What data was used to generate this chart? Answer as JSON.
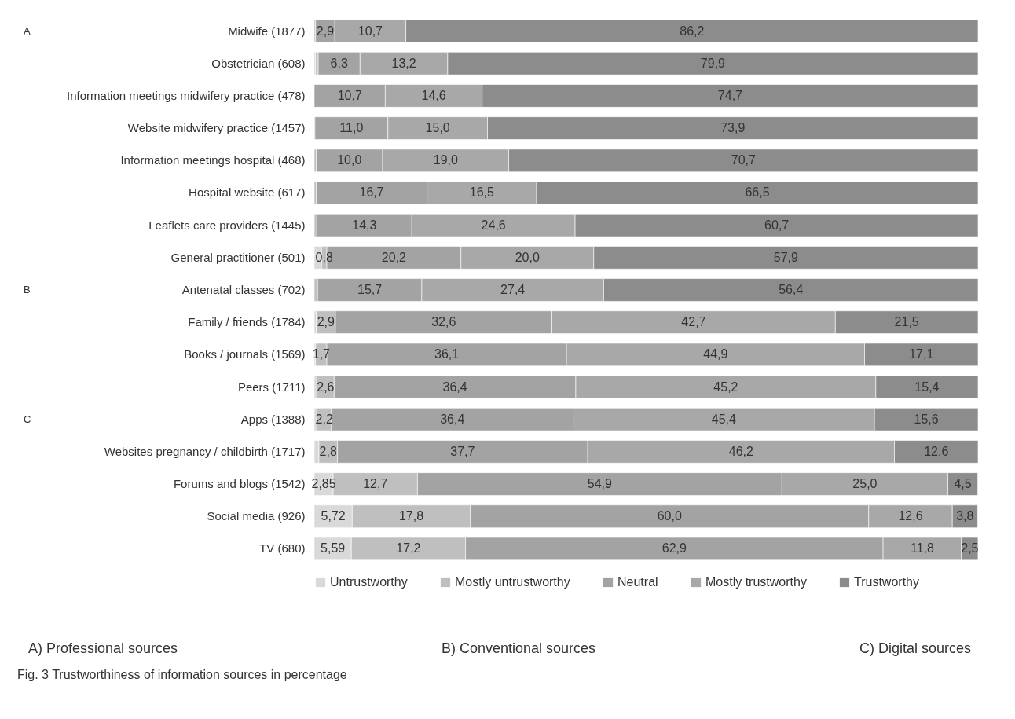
{
  "chart_data": {
    "type": "bar",
    "orientation": "horizontal",
    "stacked": true,
    "legend": "bottom",
    "categories": [
      "Midwife (1877)",
      "Obstetrician (608)",
      "Information meetings midwifery practice (478)",
      "Website midwifery practice (1457)",
      "Information meetings hospital (468)",
      "Hospital website  (617)",
      "Leaflets care providers (1445)",
      "General practitioner (501)",
      "Antenatal classes (702)",
      "Family / friends (1784)",
      "Books / journals (1569)",
      "Peers (1711)",
      "Apps (1388)",
      "Websites pregnancy / childbirth (1717)",
      "Forums and blogs (1542)",
      "Social media (926)",
      "TV (680)"
    ],
    "series": [
      {
        "name": "Untrustworthy",
        "color": "#d9d9d9",
        "values": [
          null,
          0.2,
          null,
          null,
          null,
          null,
          null,
          1.1,
          null,
          0.3,
          0.2,
          0.4,
          0.4,
          0.7,
          2.85,
          5.72,
          5.59
        ],
        "value_labels": [
          null,
          null,
          null,
          null,
          null,
          null,
          null,
          null,
          null,
          null,
          null,
          null,
          null,
          null,
          "2,85",
          "5,72",
          "5,59"
        ]
      },
      {
        "name": "Mostly untrustworthy",
        "color": "#bfbfbf",
        "values": [
          0.2,
          0.4,
          null,
          0.1,
          0.3,
          0.3,
          0.4,
          0.8,
          0.5,
          2.9,
          1.7,
          2.6,
          2.2,
          2.8,
          12.7,
          17.8,
          17.2
        ],
        "value_labels": [
          null,
          null,
          null,
          null,
          null,
          null,
          null,
          "0,8",
          null,
          "2,9",
          "1,7",
          "2,6",
          "2,2",
          "2,8",
          "12,7",
          "17,8",
          "17,2"
        ]
      },
      {
        "name": "Neutral",
        "color": "#a3a3a3",
        "values": [
          2.9,
          6.3,
          10.7,
          11.0,
          10.0,
          16.7,
          14.3,
          20.2,
          15.7,
          32.6,
          36.1,
          36.4,
          36.4,
          37.7,
          54.9,
          60.0,
          62.9
        ],
        "value_labels": [
          "2,9",
          "6,3",
          "10,7",
          "11,0",
          "10,0",
          "16,7",
          "14,3",
          "20,2",
          "15,7",
          "32,6",
          "36,1",
          "36,4",
          "36,4",
          "37,7",
          "54,9",
          "60,0",
          "62,9"
        ]
      },
      {
        "name": "Mostly trustworthy",
        "color": "#a8a8a8",
        "values": [
          10.7,
          13.2,
          14.6,
          15.0,
          19.0,
          16.5,
          24.6,
          20.0,
          27.4,
          42.7,
          44.9,
          45.2,
          45.4,
          46.2,
          25.0,
          12.6,
          11.8
        ],
        "value_labels": [
          "10,7",
          "13,2",
          "14,6",
          "15,0",
          "19,0",
          "16,5",
          "24,6",
          "20,0",
          "27,4",
          "42,7",
          "44,9",
          "45,2",
          "45,4",
          "46,2",
          "25,0",
          "12,6",
          "11,8"
        ]
      },
      {
        "name": "Trustworthy",
        "color": "#8c8c8c",
        "values": [
          86.2,
          79.9,
          74.7,
          73.9,
          70.7,
          66.5,
          60.7,
          57.9,
          56.4,
          21.5,
          17.1,
          15.4,
          15.6,
          12.6,
          4.5,
          3.8,
          2.5
        ],
        "value_labels": [
          "86,2",
          "79,9",
          "74,7",
          "73,9",
          "70,7",
          "66,5",
          "60,7",
          "57,9",
          "56,4",
          "21,5",
          "17,1",
          "15,4",
          "15,6",
          "12,6",
          "4,5",
          "3,8",
          "2,5"
        ]
      }
    ],
    "annotations": [
      "A",
      "B",
      "C",
      "A) Professional sources",
      "B) Conventional sources",
      "C) Digital sources",
      "Fig. 3 Trustworthiness of information sources in percentage"
    ]
  }
}
